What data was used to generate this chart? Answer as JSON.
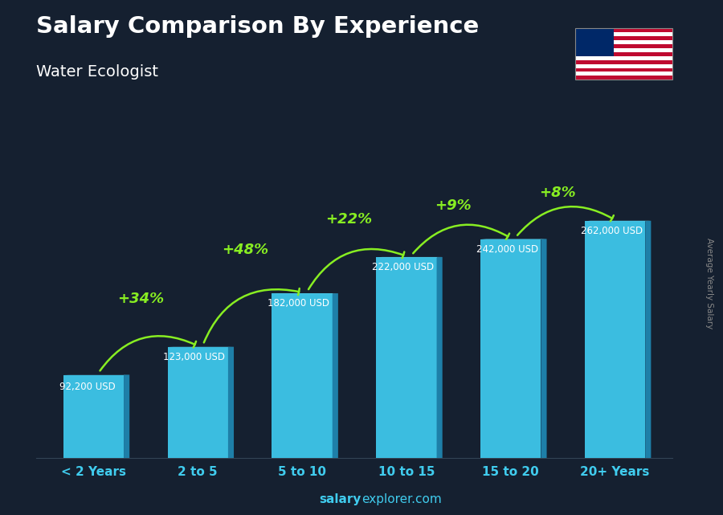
{
  "title": "Salary Comparison By Experience",
  "subtitle": "Water Ecologist",
  "ylabel": "Average Yearly Salary",
  "footer_bold": "salary",
  "footer_normal": "explorer.com",
  "categories": [
    "< 2 Years",
    "2 to 5",
    "5 to 10",
    "10 to 15",
    "15 to 20",
    "20+ Years"
  ],
  "values": [
    92200,
    123000,
    182000,
    222000,
    242000,
    262000
  ],
  "labels": [
    "92,200 USD",
    "123,000 USD",
    "182,000 USD",
    "222,000 USD",
    "242,000 USD",
    "262,000 USD"
  ],
  "pct_changes": [
    "+34%",
    "+48%",
    "+22%",
    "+9%",
    "+8%"
  ],
  "bar_color_front": "#3bbde0",
  "bar_color_side": "#1e7fa8",
  "bar_color_top": "#60d4f0",
  "bg_color": "#152030",
  "title_color": "#ffffff",
  "subtitle_color": "#ffffff",
  "label_color": "#ffffff",
  "pct_color": "#88ee22",
  "tick_color": "#40ccee",
  "footer_bold_color": "#40ccee",
  "footer_normal_color": "#40ccee",
  "ylabel_color": "#888888",
  "arrow_color": "#88ee22"
}
